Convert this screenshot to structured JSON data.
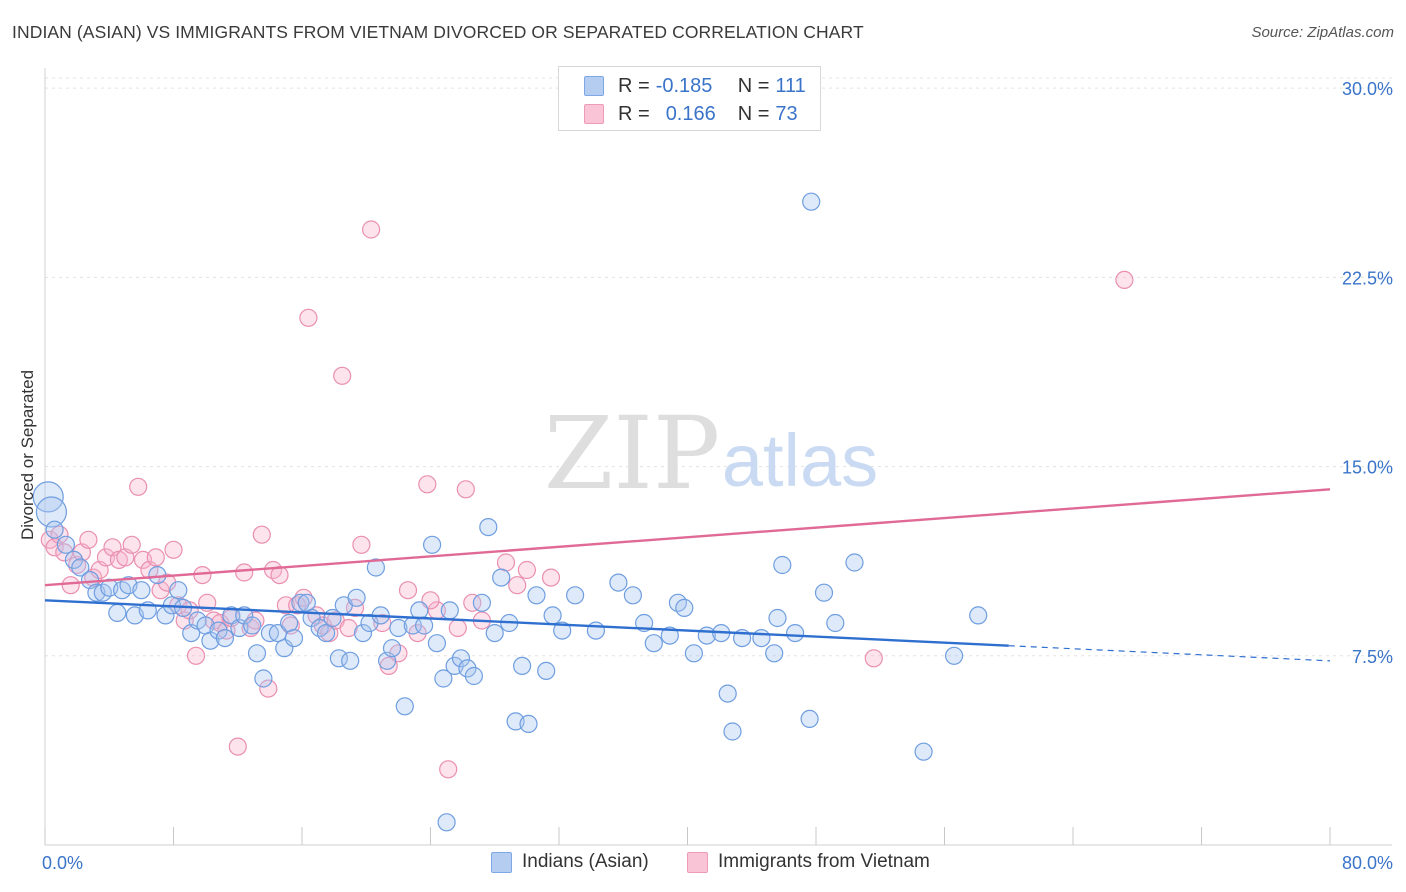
{
  "title": "INDIAN (ASIAN) VS IMMIGRANTS FROM VIETNAM DIVORCED OR SEPARATED CORRELATION CHART",
  "source": "Source: ZipAtlas.com",
  "watermark": {
    "zip": "ZIP",
    "atlas": "atlas"
  },
  "legend": {
    "r_label": "R =",
    "n_label": "N =",
    "series": [
      {
        "name": "Indians (Asian)",
        "r": "-0.185",
        "n": "111",
        "color": "#7fa7e6"
      },
      {
        "name": "Immigrants from Vietnam",
        "r": "0.166",
        "n": "73",
        "color": "#ef9ab8"
      }
    ]
  },
  "chart_data": {
    "type": "scatter",
    "title": "INDIAN (ASIAN) VS IMMIGRANTS FROM VIETNAM DIVORCED OR SEPARATED CORRELATION CHART",
    "xlabel": "",
    "ylabel": "Divorced or Separated",
    "x_tick_labels": [
      "0.0%",
      "80.0%"
    ],
    "y_tick_labels": [
      "7.5%",
      "15.0%",
      "22.5%",
      "30.0%"
    ],
    "y_ticks": [
      7.5,
      15.0,
      22.5,
      30.0
    ],
    "xlim": [
      0,
      80
    ],
    "ylim": [
      0,
      30.8
    ],
    "grid": "horizontal dashed",
    "legend_position": "top-center",
    "series": [
      {
        "name": "Indians (Asian)",
        "color": "#7fa7e6",
        "trend": {
          "x0": 0,
          "y0": 9.7,
          "x1": 60,
          "y1": 7.9,
          "dashed_to_x": 80,
          "dashed_to_y": 7.3
        },
        "points": [
          [
            0.2,
            13.8
          ],
          [
            0.4,
            13.2
          ],
          [
            0.6,
            12.5
          ],
          [
            1.3,
            11.9
          ],
          [
            1.8,
            11.3
          ],
          [
            2.2,
            11.0
          ],
          [
            2.8,
            10.5
          ],
          [
            3.2,
            10.0
          ],
          [
            3.6,
            10.0
          ],
          [
            4.0,
            10.2
          ],
          [
            4.5,
            9.2
          ],
          [
            4.8,
            10.1
          ],
          [
            5.2,
            10.3
          ],
          [
            5.6,
            9.1
          ],
          [
            6.0,
            10.1
          ],
          [
            6.4,
            9.3
          ],
          [
            7.0,
            10.7
          ],
          [
            7.5,
            9.1
          ],
          [
            7.9,
            9.5
          ],
          [
            8.3,
            10.1
          ],
          [
            8.6,
            9.4
          ],
          [
            9.1,
            8.4
          ],
          [
            9.5,
            8.9
          ],
          [
            10.0,
            8.7
          ],
          [
            10.3,
            8.1
          ],
          [
            10.8,
            8.5
          ],
          [
            11.2,
            8.2
          ],
          [
            11.6,
            9.1
          ],
          [
            12.1,
            8.6
          ],
          [
            12.4,
            9.1
          ],
          [
            12.9,
            8.7
          ],
          [
            13.2,
            7.6
          ],
          [
            13.6,
            6.6
          ],
          [
            14.0,
            8.4
          ],
          [
            14.5,
            8.4
          ],
          [
            14.9,
            7.8
          ],
          [
            15.2,
            8.8
          ],
          [
            15.5,
            8.2
          ],
          [
            15.9,
            9.6
          ],
          [
            16.3,
            9.6
          ],
          [
            16.6,
            9.0
          ],
          [
            17.1,
            8.6
          ],
          [
            17.5,
            8.4
          ],
          [
            17.9,
            9.0
          ],
          [
            18.3,
            7.4
          ],
          [
            18.6,
            9.5
          ],
          [
            19.0,
            7.3
          ],
          [
            19.4,
            9.8
          ],
          [
            19.8,
            8.4
          ],
          [
            20.2,
            8.8
          ],
          [
            20.6,
            11.0
          ],
          [
            20.9,
            9.1
          ],
          [
            21.3,
            7.3
          ],
          [
            21.6,
            7.8
          ],
          [
            22.0,
            8.6
          ],
          [
            22.4,
            5.5
          ],
          [
            22.9,
            8.7
          ],
          [
            23.3,
            9.3
          ],
          [
            23.6,
            8.7
          ],
          [
            24.1,
            11.9
          ],
          [
            24.4,
            8.0
          ],
          [
            24.8,
            6.6
          ],
          [
            25.2,
            9.3
          ],
          [
            25.5,
            7.1
          ],
          [
            25.9,
            7.4
          ],
          [
            26.3,
            7.0
          ],
          [
            26.7,
            6.7
          ],
          [
            27.2,
            9.6
          ],
          [
            27.6,
            12.6
          ],
          [
            28.0,
            8.4
          ],
          [
            28.4,
            10.6
          ],
          [
            28.9,
            8.8
          ],
          [
            29.3,
            4.9
          ],
          [
            29.7,
            7.1
          ],
          [
            30.1,
            4.8
          ],
          [
            30.6,
            9.9
          ],
          [
            31.2,
            6.9
          ],
          [
            31.6,
            9.1
          ],
          [
            32.2,
            8.5
          ],
          [
            33.0,
            9.9
          ],
          [
            34.3,
            8.5
          ],
          [
            35.7,
            10.4
          ],
          [
            36.6,
            9.9
          ],
          [
            37.3,
            8.8
          ],
          [
            37.9,
            8.0
          ],
          [
            38.9,
            8.3
          ],
          [
            39.4,
            9.6
          ],
          [
            39.8,
            9.4
          ],
          [
            40.4,
            7.6
          ],
          [
            41.2,
            8.3
          ],
          [
            42.1,
            8.4
          ],
          [
            42.5,
            6.0
          ],
          [
            42.8,
            4.5
          ],
          [
            43.4,
            8.2
          ],
          [
            44.6,
            8.2
          ],
          [
            45.4,
            7.6
          ],
          [
            45.6,
            9.0
          ],
          [
            45.9,
            11.1
          ],
          [
            46.7,
            8.4
          ],
          [
            47.7,
            25.5
          ],
          [
            47.6,
            5.0
          ],
          [
            48.5,
            10.0
          ],
          [
            49.2,
            8.8
          ],
          [
            50.4,
            11.2
          ],
          [
            54.7,
            3.7
          ],
          [
            58.1,
            9.1
          ],
          [
            56.6,
            7.5
          ],
          [
            25.0,
            0.9
          ]
        ]
      },
      {
        "name": "Immigrants from Vietnam",
        "color": "#ef9ab8",
        "trend": {
          "x0": 0,
          "y0": 10.3,
          "x1": 80,
          "y1": 14.1
        },
        "points": [
          [
            0.3,
            12.1
          ],
          [
            0.6,
            11.8
          ],
          [
            0.9,
            12.3
          ],
          [
            1.2,
            11.6
          ],
          [
            1.6,
            10.3
          ],
          [
            2.0,
            11.1
          ],
          [
            2.3,
            11.6
          ],
          [
            2.7,
            12.1
          ],
          [
            3.0,
            10.6
          ],
          [
            3.4,
            10.9
          ],
          [
            3.8,
            11.4
          ],
          [
            4.2,
            11.8
          ],
          [
            4.6,
            11.3
          ],
          [
            5.0,
            11.4
          ],
          [
            5.4,
            11.9
          ],
          [
            5.8,
            14.2
          ],
          [
            6.1,
            11.3
          ],
          [
            6.5,
            10.9
          ],
          [
            6.9,
            11.4
          ],
          [
            7.2,
            10.1
          ],
          [
            7.6,
            10.4
          ],
          [
            8.0,
            11.7
          ],
          [
            8.3,
            9.5
          ],
          [
            8.7,
            8.9
          ],
          [
            9.0,
            9.3
          ],
          [
            9.4,
            7.5
          ],
          [
            9.8,
            10.7
          ],
          [
            10.1,
            9.6
          ],
          [
            10.5,
            8.9
          ],
          [
            10.9,
            8.8
          ],
          [
            11.3,
            8.5
          ],
          [
            11.6,
            9.0
          ],
          [
            12.0,
            3.9
          ],
          [
            12.4,
            10.8
          ],
          [
            12.8,
            8.6
          ],
          [
            13.1,
            8.9
          ],
          [
            13.5,
            12.3
          ],
          [
            13.9,
            6.2
          ],
          [
            14.2,
            10.9
          ],
          [
            14.6,
            10.7
          ],
          [
            15.0,
            9.5
          ],
          [
            15.3,
            8.7
          ],
          [
            15.7,
            9.5
          ],
          [
            16.1,
            9.8
          ],
          [
            16.4,
            20.9
          ],
          [
            16.9,
            9.1
          ],
          [
            17.3,
            8.7
          ],
          [
            17.7,
            8.4
          ],
          [
            18.1,
            8.9
          ],
          [
            18.5,
            18.6
          ],
          [
            18.9,
            8.6
          ],
          [
            19.3,
            9.4
          ],
          [
            19.7,
            11.9
          ],
          [
            20.3,
            24.4
          ],
          [
            21.0,
            8.8
          ],
          [
            21.4,
            7.1
          ],
          [
            22.0,
            7.6
          ],
          [
            22.6,
            10.1
          ],
          [
            23.2,
            8.4
          ],
          [
            23.8,
            14.3
          ],
          [
            24.4,
            9.3
          ],
          [
            25.1,
            3.0
          ],
          [
            25.7,
            8.6
          ],
          [
            26.2,
            14.1
          ],
          [
            26.6,
            9.6
          ],
          [
            27.2,
            8.9
          ],
          [
            28.7,
            11.2
          ],
          [
            29.4,
            10.3
          ],
          [
            30.0,
            10.9
          ],
          [
            31.5,
            10.6
          ],
          [
            24.0,
            9.7
          ],
          [
            51.6,
            7.4
          ],
          [
            67.2,
            22.4
          ]
        ]
      }
    ]
  }
}
